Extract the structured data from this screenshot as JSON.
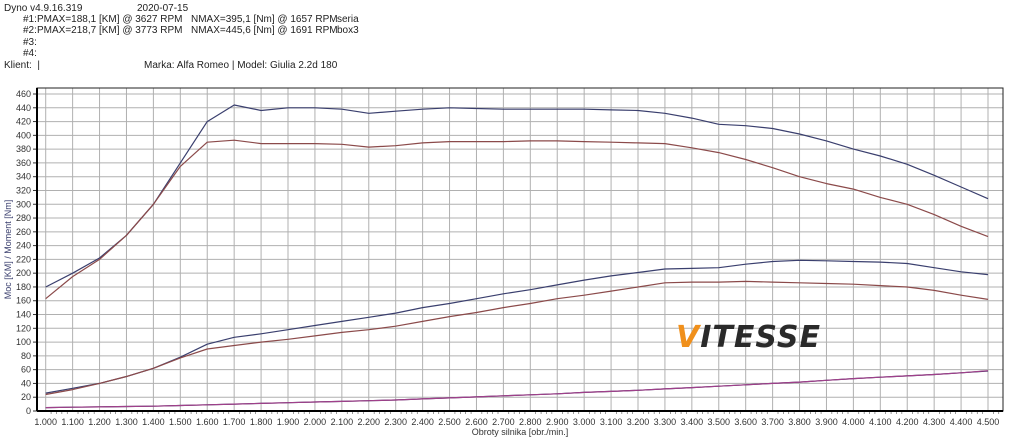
{
  "header": {
    "version": "Dyno v4.9.16.319",
    "date": "2020-07-15",
    "runs": [
      {
        "id": "#1:",
        "pmax": "PMAX=188,1 [KM] @ 3627 RPM",
        "nmax": "NMAX=395,1 [Nm] @ 1657 RPM",
        "name": "seria"
      },
      {
        "id": "#2:",
        "pmax": "PMAX=218,7 [KM] @ 3773 RPM",
        "nmax": "NMAX=445,6 [Nm] @ 1691 RPM",
        "name": "box3"
      },
      {
        "id": "#3:",
        "pmax": "",
        "nmax": "",
        "name": ""
      },
      {
        "id": "#4:",
        "pmax": "",
        "nmax": "",
        "name": ""
      }
    ],
    "client": "Klient:  |",
    "car": "Marka: Alfa Romeo | Model: Giulia 2.2d 180"
  },
  "logo": {
    "first": "V",
    "rest": "ITESSE"
  },
  "chart_data": {
    "type": "line",
    "xlabel": "Obroty silnika [obr./min.]",
    "ylabel": "Moc [KM] / Moment [Nm]",
    "xlim": [
      1000,
      4500
    ],
    "ylim": [
      0,
      460
    ],
    "grid": true,
    "x_ticks": [
      "1.000",
      "1.100",
      "1.200",
      "1.300",
      "1.400",
      "1.500",
      "1.600",
      "1.700",
      "1.800",
      "1.900",
      "2.000",
      "2.100",
      "2.200",
      "2.300",
      "2.400",
      "2.500",
      "2.600",
      "2.700",
      "2.800",
      "2.900",
      "3.000",
      "3.100",
      "3.200",
      "3.300",
      "3.400",
      "3.500",
      "3.600",
      "3.700",
      "3.800",
      "3.900",
      "4.000",
      "4.100",
      "4.200",
      "4.300",
      "4.400",
      "4.500"
    ],
    "y_ticks": [
      "0",
      "20",
      "40",
      "60",
      "80",
      "100",
      "120",
      "140",
      "160",
      "180",
      "200",
      "220",
      "240",
      "260",
      "280",
      "300",
      "320",
      "340",
      "360",
      "380",
      "400",
      "420",
      "440",
      "460"
    ],
    "x": [
      1000,
      1100,
      1200,
      1300,
      1400,
      1500,
      1600,
      1700,
      1800,
      1900,
      2000,
      2100,
      2200,
      2300,
      2400,
      2500,
      2600,
      2700,
      2800,
      2900,
      3000,
      3100,
      3200,
      3300,
      3400,
      3500,
      3600,
      3700,
      3800,
      3900,
      4000,
      4100,
      4200,
      4300,
      4400,
      4500
    ],
    "series": [
      {
        "run": "#2",
        "quantity": "torque",
        "color": "#3a3f6e",
        "values": [
          180,
          200,
          222,
          255,
          300,
          360,
          420,
          444,
          436,
          440,
          440,
          438,
          432,
          435,
          438,
          440,
          439,
          438,
          438,
          438,
          438,
          437,
          436,
          432,
          425,
          416,
          414,
          410,
          402,
          392,
          380,
          370,
          358,
          342,
          325,
          308
        ]
      },
      {
        "run": "#1",
        "quantity": "torque",
        "color": "#8b4a4a",
        "values": [
          163,
          195,
          220,
          255,
          300,
          355,
          390,
          393,
          388,
          388,
          388,
          387,
          383,
          385,
          389,
          391,
          391,
          391,
          392,
          392,
          391,
          390,
          389,
          388,
          382,
          375,
          365,
          353,
          340,
          330,
          322,
          310,
          300,
          285,
          268,
          253
        ]
      },
      {
        "run": "#2",
        "quantity": "power",
        "color": "#3a3f6e",
        "values": [
          26,
          33,
          40,
          50,
          62,
          78,
          97,
          107,
          112,
          118,
          124,
          130,
          136,
          142,
          150,
          156,
          163,
          170,
          176,
          183,
          190,
          196,
          201,
          206,
          207,
          208,
          213,
          217,
          218.7,
          218,
          217,
          216,
          214,
          208,
          202,
          198
        ]
      },
      {
        "run": "#1",
        "quantity": "power",
        "color": "#8b4a4a",
        "values": [
          24,
          31,
          40,
          50,
          62,
          77,
          90,
          95,
          100,
          104,
          109,
          114,
          118,
          123,
          130,
          137,
          143,
          150,
          156,
          163,
          168,
          174,
          180,
          186,
          187,
          187,
          188,
          187,
          186,
          185,
          184,
          182,
          180,
          175,
          168,
          162
        ]
      },
      {
        "run": "#2",
        "quantity": "losses",
        "color": "#2a2a5a",
        "values": [
          5,
          5.5,
          6,
          6.5,
          7,
          8,
          9,
          10,
          11,
          12,
          13,
          14,
          15,
          16,
          17.5,
          19,
          20.5,
          22,
          23.5,
          25,
          27,
          28.5,
          30,
          32,
          34,
          36,
          38,
          40,
          42,
          44.5,
          47,
          49,
          51,
          53,
          55.5,
          58
        ]
      },
      {
        "run": "#1",
        "quantity": "losses",
        "color": "#a0408a",
        "values": [
          5,
          5.5,
          6,
          6.5,
          7,
          8,
          9,
          10,
          11,
          12,
          13,
          14,
          15,
          16,
          17.5,
          19,
          20.5,
          22,
          23.5,
          25,
          27,
          28.5,
          30,
          32,
          34,
          36,
          38,
          40,
          42,
          44.5,
          47,
          49,
          51,
          53,
          55.5,
          58.5
        ]
      }
    ]
  }
}
